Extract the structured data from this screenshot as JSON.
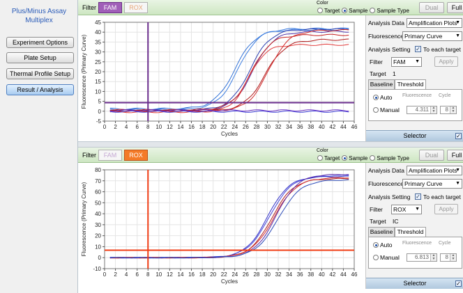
{
  "app": {
    "title_line1": "Plus/Minus Assay",
    "title_line2": "Multiplex"
  },
  "nav": [
    {
      "label": "Experiment Options",
      "active": false
    },
    {
      "label": "Plate Setup",
      "active": false
    },
    {
      "label": "Thermal Profile Setup",
      "active": false
    },
    {
      "label": "Result / Analysis",
      "active": true
    }
  ],
  "common": {
    "filter_label": "Filter",
    "filters": [
      "FAM",
      "ROX"
    ],
    "color_label": "Color",
    "color_options": [
      "Target",
      "Sample",
      "Sample Type"
    ],
    "color_selected": "Sample",
    "dual_label": "Dual",
    "full_label": "Full",
    "analysis_data_label": "Analysis Data",
    "analysis_data_value": "Amplification Plots",
    "fluorescence_label": "Fluorescence",
    "fluorescence_value": "Primary Curve",
    "analysis_setting_label": "Analysis Setting",
    "to_each_target_label": "To each target",
    "filter_field_label": "Filter",
    "apply_label": "Apply",
    "target_label": "Target",
    "baseline_tab": "Baseline",
    "threshold_tab": "Threshold",
    "auto_label": "Auto",
    "manual_label": "Manual",
    "fluorescence_head": "Fluorescence",
    "cycle_head": "Cycle",
    "selector_label": "Selector",
    "check_mark": "✓"
  },
  "panels": [
    {
      "active_filter": "FAM",
      "filter_value": "FAM",
      "target_value": "1",
      "threshold_value": "4.311",
      "cycle_value": "8"
    },
    {
      "active_filter": "ROX",
      "filter_value": "ROX",
      "target_value": "IC",
      "threshold_value": "6.813",
      "cycle_value": "8"
    }
  ],
  "chart_data": [
    {
      "type": "line",
      "xlabel": "Cycles",
      "ylabel": "Fluorescence (Primary Curve)",
      "xlim": [
        0,
        46
      ],
      "ylim": [
        -5,
        45
      ],
      "xticks": [
        0,
        2,
        4,
        6,
        8,
        10,
        12,
        14,
        16,
        18,
        20,
        22,
        24,
        26,
        28,
        30,
        32,
        34,
        36,
        38,
        40,
        42,
        44,
        46
      ],
      "yticks": [
        -5,
        0,
        5,
        10,
        15,
        20,
        25,
        30,
        35,
        40,
        45
      ],
      "threshold": 4.311,
      "baseline_cycle": 8,
      "threshold_color": "#6a2d8c",
      "series": [
        {
          "color": "#2e6fd6",
          "params": [
            40,
            24.0,
            1.9,
            1.2
          ]
        },
        {
          "color": "#3a7ce0",
          "params": [
            41,
            24.6,
            1.9,
            0.8
          ]
        },
        {
          "color": "#2a3fb0",
          "params": [
            41,
            26.8,
            1.9,
            0.5
          ]
        },
        {
          "color": "#4b2fa6",
          "params": [
            40,
            27.3,
            1.9,
            0.3
          ]
        },
        {
          "color": "#c42020",
          "params": [
            38,
            27.0,
            1.8,
            0.6
          ]
        },
        {
          "color": "#e03a3a",
          "params": [
            34,
            26.5,
            1.6,
            -0.4
          ]
        },
        {
          "color": "#b01818",
          "params": [
            36,
            29.5,
            1.9,
            0.2
          ]
        },
        {
          "color": "#d02828",
          "params": [
            41,
            30.2,
            1.9,
            0.0
          ]
        },
        {
          "color": "#3b3bd8",
          "params": [
            0,
            20,
            2,
            -0.2
          ]
        },
        {
          "color": "#6a2fc0",
          "params": [
            0,
            20,
            2,
            0.4
          ]
        }
      ]
    },
    {
      "type": "line",
      "xlabel": "Cycles",
      "ylabel": "Fluorescence (Primary Curve)",
      "xlim": [
        0,
        46
      ],
      "ylim": [
        -10,
        80
      ],
      "xticks": [
        0,
        2,
        4,
        6,
        8,
        10,
        12,
        14,
        16,
        18,
        20,
        22,
        24,
        26,
        28,
        30,
        32,
        34,
        36,
        38,
        40,
        42,
        44,
        46
      ],
      "yticks": [
        -10,
        0,
        10,
        20,
        30,
        40,
        50,
        60,
        70,
        80
      ],
      "threshold": 6.813,
      "baseline_cycle": 8,
      "threshold_color": "#f03c14",
      "series": [
        {
          "color": "#3232c8",
          "params": [
            74,
            30.0,
            2.0,
            0.0
          ]
        },
        {
          "color": "#4040d8",
          "params": [
            75,
            30.4,
            2.1,
            0.0
          ]
        },
        {
          "color": "#b02020",
          "params": [
            72,
            30.8,
            2.0,
            0.0
          ]
        },
        {
          "color": "#d03030",
          "params": [
            73,
            31.2,
            2.1,
            0.0
          ]
        },
        {
          "color": "#5a2aa8",
          "params": [
            76,
            31.6,
            2.0,
            0.0
          ]
        },
        {
          "color": "#2a4ab8",
          "params": [
            71,
            32.0,
            2.1,
            0.0
          ]
        }
      ]
    }
  ]
}
